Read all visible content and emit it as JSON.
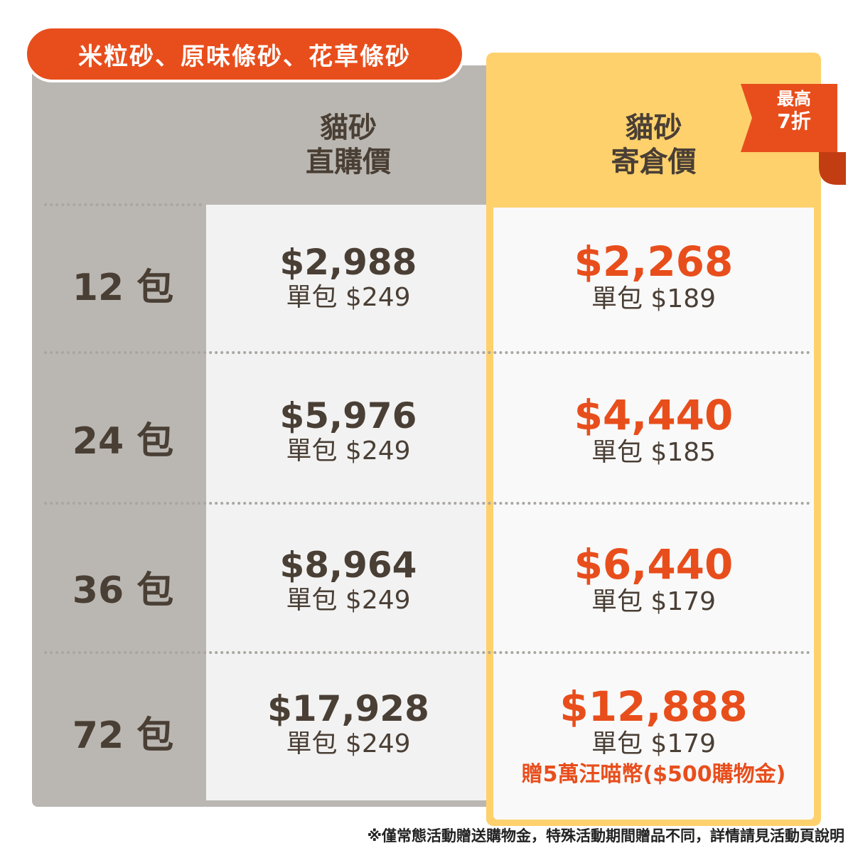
{
  "title": "米粒砂、原味條砂、花草條砂",
  "columns": {
    "direct": {
      "line1": "貓砂",
      "line2": "直購價"
    },
    "storage": {
      "line1": "貓砂",
      "line2": "寄倉價"
    }
  },
  "badge": {
    "top": "最高",
    "bottom": "7折"
  },
  "rows": [
    {
      "qty": "12 包",
      "direct_price": "$2,988",
      "direct_unit": "單包 $249",
      "storage_price": "$2,268",
      "storage_unit": "單包 $189"
    },
    {
      "qty": "24 包",
      "direct_price": "$5,976",
      "direct_unit": "單包 $249",
      "storage_price": "$4,440",
      "storage_unit": "單包 $185"
    },
    {
      "qty": "36 包",
      "direct_price": "$8,964",
      "direct_unit": "單包 $249",
      "storage_price": "$6,440",
      "storage_unit": "單包 $179"
    },
    {
      "qty": "72 包",
      "direct_price": "$17,928",
      "direct_unit": "單包 $249",
      "storage_price": "$12,888",
      "storage_unit": "單包 $179",
      "bonus": "贈5萬汪喵幣($500購物金)"
    }
  ],
  "footnote": "※僅常態活動贈送購物金，特殊活動期間贈品不同，詳情請見活動頁說明",
  "colors": {
    "accent": "#e84e1c",
    "highlight": "#fed16d",
    "frame": "#bab7b2",
    "text": "#4a3f35"
  }
}
